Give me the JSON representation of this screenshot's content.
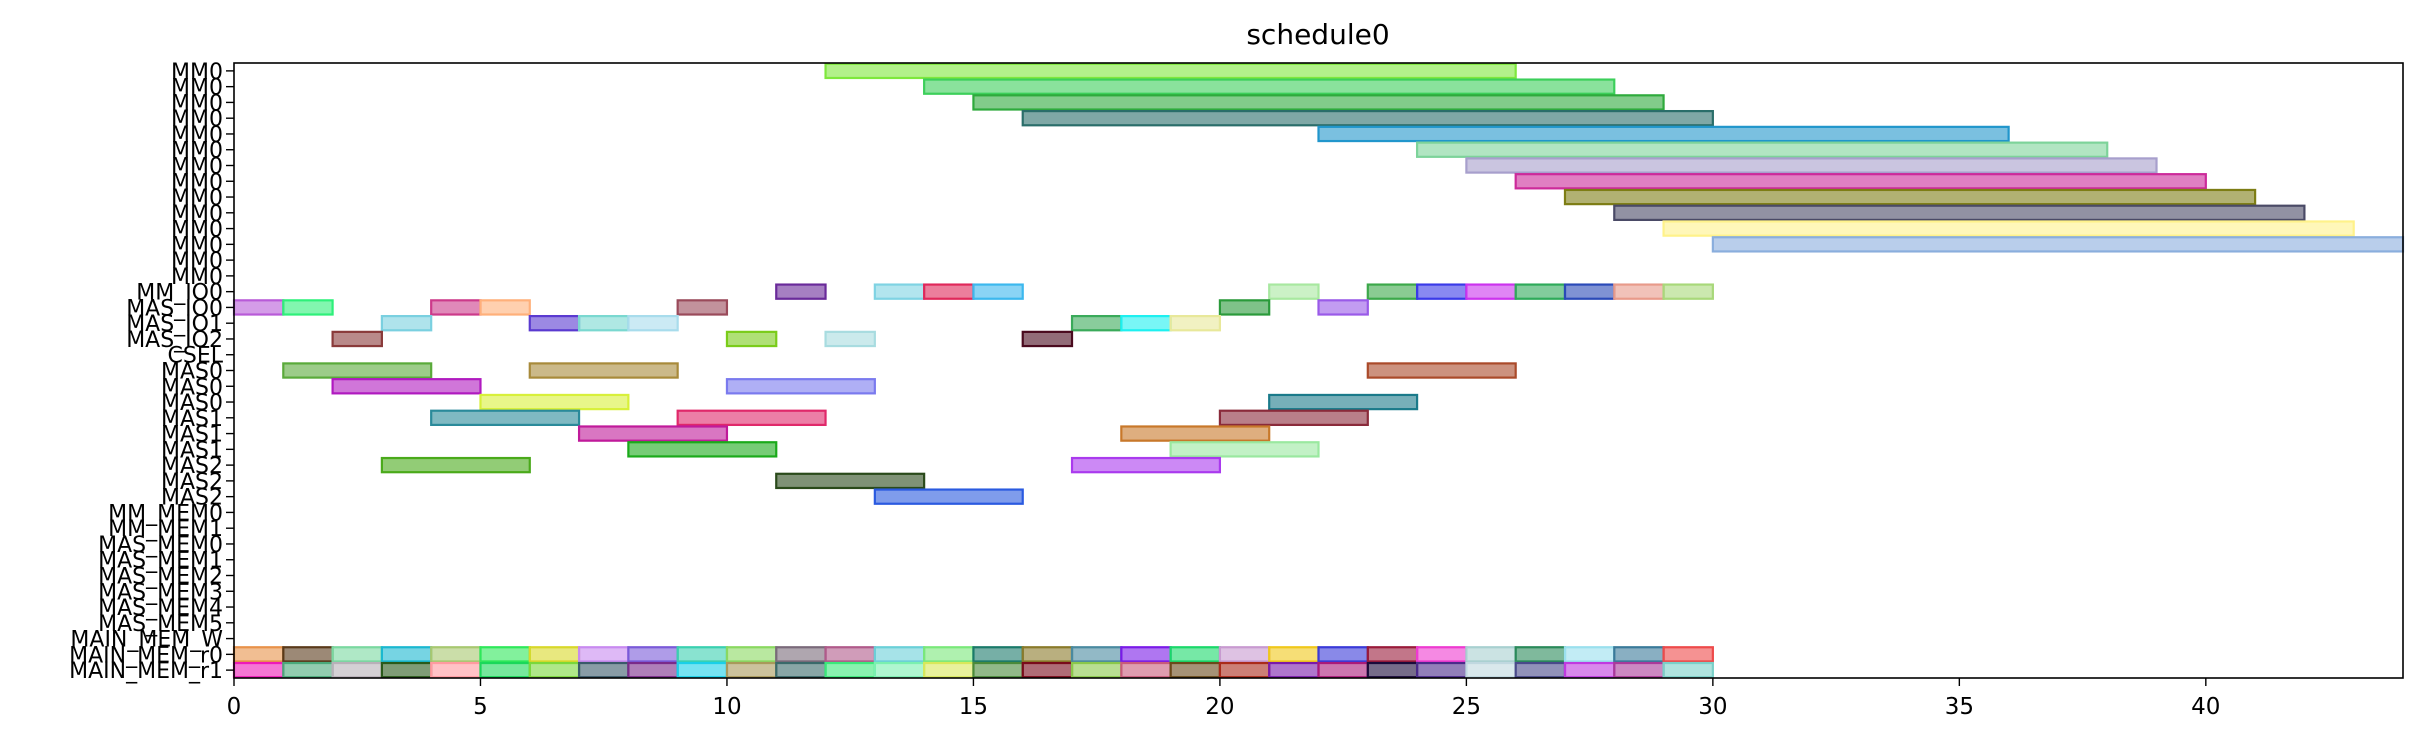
{
  "chart_data": {
    "type": "gantt",
    "title": "schedule0",
    "xlim": [
      0,
      44
    ],
    "x_ticks": [
      0,
      5,
      10,
      15,
      20,
      25,
      30,
      35,
      40
    ],
    "grid": false,
    "legend": "none",
    "rows": [
      "MM0",
      "MM0",
      "MM0",
      "MM0",
      "MM0",
      "MM0",
      "MM0",
      "MM0",
      "MM0",
      "MM0",
      "MM0",
      "MM0",
      "MM0",
      "MM0",
      "MM_IO0",
      "MAS_IO0",
      "MAS_IO1",
      "MAS_IO2",
      "CSEL",
      "MAS0",
      "MAS0",
      "MAS0",
      "MAS1",
      "MAS1",
      "MAS1",
      "MAS2",
      "MAS2",
      "MAS2",
      "MM_MEM0",
      "MM_MEM1",
      "MAS_MEM0",
      "MAS_MEM1",
      "MAS_MEM2",
      "MAS_MEM3",
      "MAS_MEM4",
      "MAS_MEM5",
      "MAIN_MEM_W",
      "MAIN_MEM_r0",
      "MAIN_MEM_r1"
    ],
    "bars": [
      {
        "row": 0,
        "start": 12,
        "end": 26,
        "color": "#7ee83c"
      },
      {
        "row": 1,
        "start": 14,
        "end": 28,
        "color": "#3ccf5a"
      },
      {
        "row": 2,
        "start": 15,
        "end": 29,
        "color": "#2eaa3c"
      },
      {
        "row": 3,
        "start": 16,
        "end": 30,
        "color": "#2a6e6a"
      },
      {
        "row": 4,
        "start": 22,
        "end": 36,
        "color": "#2196cc"
      },
      {
        "row": 5,
        "start": 24,
        "end": 38,
        "color": "#7dd39a"
      },
      {
        "row": 6,
        "start": 25,
        "end": 39,
        "color": "#a79fcc"
      },
      {
        "row": 7,
        "start": 26,
        "end": 40,
        "color": "#cc2a9a"
      },
      {
        "row": 8,
        "start": 27,
        "end": 41,
        "color": "#7d7d14"
      },
      {
        "row": 9,
        "start": 28,
        "end": 42,
        "color": "#4a4a66"
      },
      {
        "row": 10,
        "start": 29,
        "end": 43,
        "color": "#fff28a"
      },
      {
        "row": 11,
        "start": 30,
        "end": 44,
        "color": "#8aaedd"
      },
      {
        "row": 14,
        "start": 11,
        "end": 12,
        "color": "#6a2a9a"
      },
      {
        "row": 14,
        "start": 13,
        "end": 14,
        "color": "#7fd3e3"
      },
      {
        "row": 14,
        "start": 14,
        "end": 15,
        "color": "#e0285a"
      },
      {
        "row": 14,
        "start": 15,
        "end": 16,
        "color": "#3cb8ee"
      },
      {
        "row": 14,
        "start": 21,
        "end": 22,
        "color": "#a8e8a0"
      },
      {
        "row": 14,
        "start": 23,
        "end": 24,
        "color": "#3ca84a"
      },
      {
        "row": 14,
        "start": 24,
        "end": 25,
        "color": "#3a3ae8"
      },
      {
        "row": 14,
        "start": 25,
        "end": 26,
        "color": "#cc33ee"
      },
      {
        "row": 14,
        "start": 26,
        "end": 27,
        "color": "#2eaa5a"
      },
      {
        "row": 14,
        "start": 27,
        "end": 28,
        "color": "#2a4ab8"
      },
      {
        "row": 14,
        "start": 28,
        "end": 29,
        "color": "#e89a8a"
      },
      {
        "row": 14,
        "start": 29,
        "end": 30,
        "color": "#a8d87a"
      },
      {
        "row": 15,
        "start": 0,
        "end": 1,
        "color": "#b85ad8"
      },
      {
        "row": 15,
        "start": 1,
        "end": 2,
        "color": "#2ef07a"
      },
      {
        "row": 15,
        "start": 4,
        "end": 5,
        "color": "#cc3a8a"
      },
      {
        "row": 15,
        "start": 5,
        "end": 6,
        "color": "#ffb07a"
      },
      {
        "row": 15,
        "start": 9,
        "end": 10,
        "color": "#9a4a5a"
      },
      {
        "row": 15,
        "start": 20,
        "end": 21,
        "color": "#2a9a3a"
      },
      {
        "row": 15,
        "start": 22,
        "end": 23,
        "color": "#9a5ae8"
      },
      {
        "row": 16,
        "start": 3,
        "end": 4,
        "color": "#7ad0e0"
      },
      {
        "row": 16,
        "start": 6,
        "end": 7,
        "color": "#5a3ad0"
      },
      {
        "row": 16,
        "start": 7,
        "end": 8,
        "color": "#7ad8d0"
      },
      {
        "row": 16,
        "start": 8,
        "end": 9,
        "color": "#a8dcec"
      },
      {
        "row": 16,
        "start": 17,
        "end": 18,
        "color": "#3aaa5a"
      },
      {
        "row": 16,
        "start": 18,
        "end": 19,
        "color": "#1ef0f0"
      },
      {
        "row": 16,
        "start": 19,
        "end": 20,
        "color": "#e8e89a"
      },
      {
        "row": 17,
        "start": 2,
        "end": 3,
        "color": "#8a3a3a"
      },
      {
        "row": 17,
        "start": 10,
        "end": 11,
        "color": "#7acc1a"
      },
      {
        "row": 17,
        "start": 12,
        "end": 13,
        "color": "#a8dce0"
      },
      {
        "row": 17,
        "start": 16,
        "end": 17,
        "color": "#4a0a1e"
      },
      {
        "row": 19,
        "start": 1,
        "end": 4,
        "color": "#5aaa3a"
      },
      {
        "row": 19,
        "start": 6,
        "end": 9,
        "color": "#a88a3a"
      },
      {
        "row": 19,
        "start": 23,
        "end": 26,
        "color": "#aa4a2a"
      },
      {
        "row": 20,
        "start": 2,
        "end": 5,
        "color": "#b01ac0"
      },
      {
        "row": 20,
        "start": 10,
        "end": 13,
        "color": "#7a7aee"
      },
      {
        "row": 21,
        "start": 5,
        "end": 8,
        "color": "#d8f03a"
      },
      {
        "row": 21,
        "start": 21,
        "end": 24,
        "color": "#1a7a8a"
      },
      {
        "row": 22,
        "start": 4,
        "end": 7,
        "color": "#2a8a9a"
      },
      {
        "row": 22,
        "start": 9,
        "end": 12,
        "color": "#e0286a"
      },
      {
        "row": 22,
        "start": 20,
        "end": 23,
        "color": "#8a2a3a"
      },
      {
        "row": 23,
        "start": 7,
        "end": 10,
        "color": "#c01a9a"
      },
      {
        "row": 23,
        "start": 18,
        "end": 21,
        "color": "#c8782a"
      },
      {
        "row": 24,
        "start": 8,
        "end": 11,
        "color": "#1aaa1a"
      },
      {
        "row": 24,
        "start": 19,
        "end": 22,
        "color": "#9ae8a0"
      },
      {
        "row": 25,
        "start": 3,
        "end": 6,
        "color": "#4aaa1a"
      },
      {
        "row": 25,
        "start": 17,
        "end": 20,
        "color": "#aa3aee"
      },
      {
        "row": 26,
        "start": 11,
        "end": 14,
        "color": "#2a4a1a"
      },
      {
        "row": 27,
        "start": 13,
        "end": 16,
        "color": "#2a5ae0"
      },
      {
        "row": 37,
        "start": 0,
        "end": 1,
        "color": "#e8924a"
      },
      {
        "row": 37,
        "start": 1,
        "end": 2,
        "color": "#5a3a1a"
      },
      {
        "row": 37,
        "start": 2,
        "end": 3,
        "color": "#7ad8a0"
      },
      {
        "row": 37,
        "start": 3,
        "end": 4,
        "color": "#1ab8d0"
      },
      {
        "row": 37,
        "start": 4,
        "end": 5,
        "color": "#a8c870"
      },
      {
        "row": 37,
        "start": 5,
        "end": 6,
        "color": "#2ee85a"
      },
      {
        "row": 37,
        "start": 6,
        "end": 7,
        "color": "#d8d82a"
      },
      {
        "row": 37,
        "start": 7,
        "end": 8,
        "color": "#c88af0"
      },
      {
        "row": 37,
        "start": 8,
        "end": 9,
        "color": "#7a5ad8"
      },
      {
        "row": 37,
        "start": 9,
        "end": 10,
        "color": "#3ad0b0"
      },
      {
        "row": 37,
        "start": 10,
        "end": 11,
        "color": "#8ad860"
      },
      {
        "row": 37,
        "start": 11,
        "end": 12,
        "color": "#7a6a7a"
      },
      {
        "row": 37,
        "start": 12,
        "end": 13,
        "color": "#b05a8a"
      },
      {
        "row": 37,
        "start": 13,
        "end": 14,
        "color": "#6ad0d8"
      },
      {
        "row": 37,
        "start": 14,
        "end": 15,
        "color": "#7ae87a"
      },
      {
        "row": 37,
        "start": 15,
        "end": 16,
        "color": "#1a7a6a"
      },
      {
        "row": 37,
        "start": 16,
        "end": 17,
        "color": "#8a7a2a"
      },
      {
        "row": 37,
        "start": 17,
        "end": 18,
        "color": "#4a8aa0"
      },
      {
        "row": 37,
        "start": 18,
        "end": 19,
        "color": "#7a1ae8"
      },
      {
        "row": 37,
        "start": 19,
        "end": 20,
        "color": "#1ad86a"
      },
      {
        "row": 37,
        "start": 20,
        "end": 21,
        "color": "#c89ad0"
      },
      {
        "row": 37,
        "start": 21,
        "end": 22,
        "color": "#f0c81a"
      },
      {
        "row": 37,
        "start": 22,
        "end": 23,
        "color": "#3a3ad8"
      },
      {
        "row": 37,
        "start": 23,
        "end": 24,
        "color": "#9a1a3a"
      },
      {
        "row": 37,
        "start": 24,
        "end": 25,
        "color": "#ee3ad0"
      },
      {
        "row": 37,
        "start": 25,
        "end": 26,
        "color": "#a8d0d0"
      },
      {
        "row": 37,
        "start": 26,
        "end": 27,
        "color": "#2a8a5a"
      },
      {
        "row": 37,
        "start": 27,
        "end": 28,
        "color": "#9ae0ee"
      },
      {
        "row": 37,
        "start": 28,
        "end": 29,
        "color": "#3a7a9a"
      },
      {
        "row": 37,
        "start": 29,
        "end": 30,
        "color": "#ee4a4a"
      },
      {
        "row": 38,
        "start": 0,
        "end": 1,
        "color": "#ee1ab8"
      },
      {
        "row": 38,
        "start": 1,
        "end": 2,
        "color": "#4aaa7a"
      },
      {
        "row": 38,
        "start": 2,
        "end": 3,
        "color": "#b8b0b8"
      },
      {
        "row": 38,
        "start": 3,
        "end": 4,
        "color": "#2a5a1a"
      },
      {
        "row": 38,
        "start": 4,
        "end": 5,
        "color": "#ff9aa0"
      },
      {
        "row": 38,
        "start": 5,
        "end": 6,
        "color": "#1ad85a"
      },
      {
        "row": 38,
        "start": 6,
        "end": 7,
        "color": "#7ad83a"
      },
      {
        "row": 38,
        "start": 7,
        "end": 8,
        "color": "#3a5a6a"
      },
      {
        "row": 38,
        "start": 8,
        "end": 9,
        "color": "#7a2a8a"
      },
      {
        "row": 38,
        "start": 9,
        "end": 10,
        "color": "#1ad0e8"
      },
      {
        "row": 38,
        "start": 10,
        "end": 11,
        "color": "#a89a5a"
      },
      {
        "row": 38,
        "start": 11,
        "end": 12,
        "color": "#3a6a6a"
      },
      {
        "row": 38,
        "start": 12,
        "end": 13,
        "color": "#3ae87a"
      },
      {
        "row": 38,
        "start": 13,
        "end": 14,
        "color": "#7af0b0"
      },
      {
        "row": 38,
        "start": 14,
        "end": 15,
        "color": "#d8e85a"
      },
      {
        "row": 38,
        "start": 15,
        "end": 16,
        "color": "#4a8a3a"
      },
      {
        "row": 38,
        "start": 16,
        "end": 17,
        "color": "#7a0a1a"
      },
      {
        "row": 38,
        "start": 17,
        "end": 18,
        "color": "#8ac84a"
      },
      {
        "row": 38,
        "start": 18,
        "end": 19,
        "color": "#c85a7a"
      },
      {
        "row": 38,
        "start": 19,
        "end": 20,
        "color": "#6a4a1a"
      },
      {
        "row": 38,
        "start": 20,
        "end": 21,
        "color": "#aa2a1a"
      },
      {
        "row": 38,
        "start": 21,
        "end": 22,
        "color": "#7a1aaa"
      },
      {
        "row": 38,
        "start": 22,
        "end": 23,
        "color": "#aa1a7a"
      },
      {
        "row": 38,
        "start": 23,
        "end": 24,
        "color": "#1a0a3a"
      },
      {
        "row": 38,
        "start": 24,
        "end": 25,
        "color": "#4a2a8a"
      },
      {
        "row": 38,
        "start": 25,
        "end": 26,
        "color": "#c0d8e0"
      },
      {
        "row": 38,
        "start": 26,
        "end": 27,
        "color": "#4a4a8a"
      },
      {
        "row": 38,
        "start": 27,
        "end": 28,
        "color": "#c03ae0"
      },
      {
        "row": 38,
        "start": 28,
        "end": 29,
        "color": "#aa3a9a"
      },
      {
        "row": 38,
        "start": 29,
        "end": 30,
        "color": "#7ad0c8"
      }
    ]
  }
}
